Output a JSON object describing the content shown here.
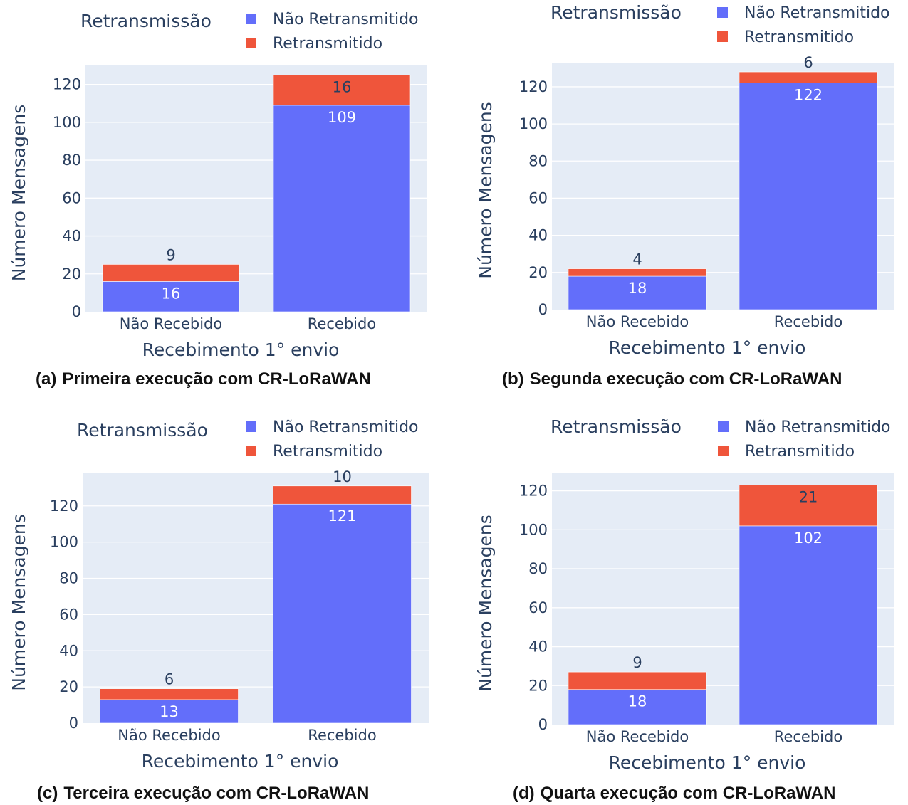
{
  "colors": {
    "non_retransmitted": "#636efa",
    "retransmitted": "#ef553b",
    "plot_bg": "#e5ecf6",
    "grid": "#ffffff",
    "text": "#2a3f5f"
  },
  "chart_data": [
    {
      "type": "bar",
      "barmode": "stack",
      "caption_label": "(a)",
      "caption_text": "Primeira execução com CR-LoRaWAN",
      "legend_title": "Retransmissão",
      "xlabel": "Recebimento 1° envio",
      "ylabel": "Número Mensagens",
      "categories": [
        "Não Recebido",
        "Recebido"
      ],
      "ylim": [
        0,
        130
      ],
      "yticks": [
        0,
        20,
        40,
        60,
        80,
        100,
        120
      ],
      "series": [
        {
          "name": "Não Retransmitido",
          "values": [
            16,
            109
          ],
          "labels": [
            "16",
            "109"
          ]
        },
        {
          "name": "Retransmitido",
          "values": [
            9,
            16
          ],
          "labels": [
            "9",
            "16"
          ]
        }
      ]
    },
    {
      "type": "bar",
      "barmode": "stack",
      "caption_label": "(b)",
      "caption_text": "Segunda execução com CR-LoRaWAN",
      "legend_title": "Retransmissão",
      "xlabel": "Recebimento 1° envio",
      "ylabel": "Número Mensagens",
      "categories": [
        "Não Recebido",
        "Recebido"
      ],
      "ylim": [
        0,
        133
      ],
      "yticks": [
        0,
        20,
        40,
        60,
        80,
        100,
        120
      ],
      "series": [
        {
          "name": "Não Retransmitido",
          "values": [
            18,
            122
          ],
          "labels": [
            "18",
            "122"
          ]
        },
        {
          "name": "Retransmitido",
          "values": [
            4,
            6
          ],
          "labels": [
            "4",
            "6"
          ]
        }
      ]
    },
    {
      "type": "bar",
      "barmode": "stack",
      "caption_label": "(c)",
      "caption_text": "Terceira execução com CR-LoRaWAN",
      "legend_title": "Retransmissão",
      "xlabel": "Recebimento 1° envio",
      "ylabel": "Número Mensagens",
      "categories": [
        "Não Recebido",
        "Recebido"
      ],
      "ylim": [
        0,
        138
      ],
      "yticks": [
        0,
        20,
        40,
        60,
        80,
        100,
        120
      ],
      "series": [
        {
          "name": "Não Retransmitido",
          "values": [
            13,
            121
          ],
          "labels": [
            "13",
            "121"
          ]
        },
        {
          "name": "Retransmitido",
          "values": [
            6,
            10
          ],
          "labels": [
            "6",
            "10"
          ]
        }
      ]
    },
    {
      "type": "bar",
      "barmode": "stack",
      "caption_label": "(d)",
      "caption_text": "Quarta execução com CR-LoRaWAN",
      "legend_title": "Retransmissão",
      "xlabel": "Recebimento 1° envio",
      "ylabel": "Número Mensagens",
      "categories": [
        "Não Recebido",
        "Recebido"
      ],
      "ylim": [
        0,
        129
      ],
      "yticks": [
        0,
        20,
        40,
        60,
        80,
        100,
        120
      ],
      "series": [
        {
          "name": "Não Retransmitido",
          "values": [
            18,
            102
          ],
          "labels": [
            "18",
            "102"
          ]
        },
        {
          "name": "Retransmitido",
          "values": [
            9,
            21
          ],
          "labels": [
            "9",
            "21"
          ]
        }
      ]
    }
  ]
}
